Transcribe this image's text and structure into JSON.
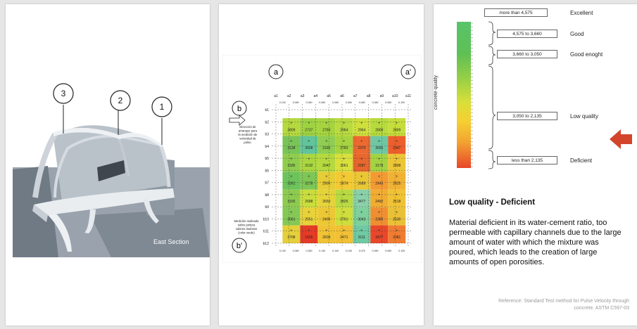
{
  "slide1": {
    "caption": "East Section",
    "markers": [
      "3",
      "2",
      "1"
    ]
  },
  "slide2": {
    "axis_top_left": "a",
    "axis_top_right": "a'",
    "axis_left_top": "b",
    "axis_left_bottom": "b'",
    "col_labels": [
      "a1",
      "a2",
      "a3",
      "a4",
      "a5",
      "a6",
      "a7",
      "a8",
      "a9",
      "a10",
      "a11"
    ],
    "row_labels": [
      "b1",
      "b2",
      "b3",
      "b4",
      "b5",
      "b6",
      "b7",
      "b8",
      "b9",
      "b10",
      "b11",
      "b12"
    ],
    "note_direction": [
      "Dirección de",
      "arranque para",
      "la medición de",
      "velocidad de",
      "pulso."
    ],
    "note_measure": [
      "Medición realizada",
      "sobre pintura",
      "valores dudosos",
      "(color verde)"
    ],
    "top_dims": [
      "0.100",
      "0.080",
      "0.080",
      "0.080",
      "0.080",
      "0.080",
      "0.080",
      "0.080",
      "0.080",
      "0.100"
    ],
    "bottom_dims": [
      "0.100",
      "0.080",
      "0.080",
      "0.140",
      "0.140",
      "0.105",
      "0.075",
      "0.080",
      "0.080",
      "0.105"
    ],
    "cells": [
      [
        "2809",
        "2737",
        "2783",
        "2964",
        "2964",
        "2808",
        "2809"
      ],
      [
        "3138",
        "3608",
        "3185",
        "2783",
        "2370",
        "3695",
        "2347"
      ],
      [
        "3185",
        "3132",
        "2947",
        "3061",
        "2287",
        "3178",
        "2808"
      ],
      [
        "3261",
        "3178",
        "2595",
        "2874",
        "2689",
        "2443",
        "2525"
      ],
      [
        "3165",
        "2688",
        "2650",
        "2825",
        "3477",
        "2492",
        "2618"
      ],
      [
        "3061",
        "2551",
        "2496",
        "2761",
        "3043",
        "2389",
        "2530"
      ],
      [
        "2708",
        "1526",
        "2609",
        "2471",
        "3111",
        "1877",
        "2081"
      ]
    ],
    "cell_colors": [
      [
        "#b5d93e",
        "#9fd241",
        "#a6d43f",
        "#b9da40",
        "#cfe03d",
        "#b7da3e",
        "#c6de3b"
      ],
      [
        "#79c458",
        "#62c49b",
        "#8fce52",
        "#a6d43f",
        "#ec6a30",
        "#6ec7a2",
        "#ec5e2c"
      ],
      [
        "#8fcd4e",
        "#aad640",
        "#b5d93e",
        "#d9e03c",
        "#e8672e",
        "#a3d342",
        "#ecc636"
      ],
      [
        "#6dc35b",
        "#7ec655",
        "#e6cc36",
        "#f3c934",
        "#e9c735",
        "#f39a33",
        "#f1b234"
      ],
      [
        "#8dcb50",
        "#c9dd3c",
        "#e5d33a",
        "#b9da40",
        "#8ad0a8",
        "#f1ac32",
        "#f0c234"
      ],
      [
        "#85c856",
        "#e8d23a",
        "#edc835",
        "#cfde3b",
        "#7ed09c",
        "#f08f31",
        "#eac135"
      ],
      [
        "#e5cf3a",
        "#e43b26",
        "#f0c234",
        "#f1c034",
        "#6fc9a3",
        "#e8472a",
        "#f07c31"
      ]
    ]
  },
  "slide3": {
    "axis_title": "concrete quality",
    "quality_labels": [
      "Excellent",
      "Good",
      "Good enoght",
      "Low quality",
      "Deficient"
    ],
    "ranges": [
      "more than 4,575",
      "4,575  to  3,660",
      "3,660  to  3,050",
      "3,050  to  2,135",
      "less than 2,135"
    ],
    "heading": "Low quality  -  Deficient",
    "body": "Material deficient in its water-cement ratio, too permeable with capillary channels due to the large amount of water with which the mixture was poured, which leads to the creation of large amounts of open porosities.",
    "reference": "Reference:  Standard  Test  method  for  Pulse Velocity through concrete. ASTM C597-03",
    "colors": {
      "arrow": "#d2452b"
    }
  }
}
